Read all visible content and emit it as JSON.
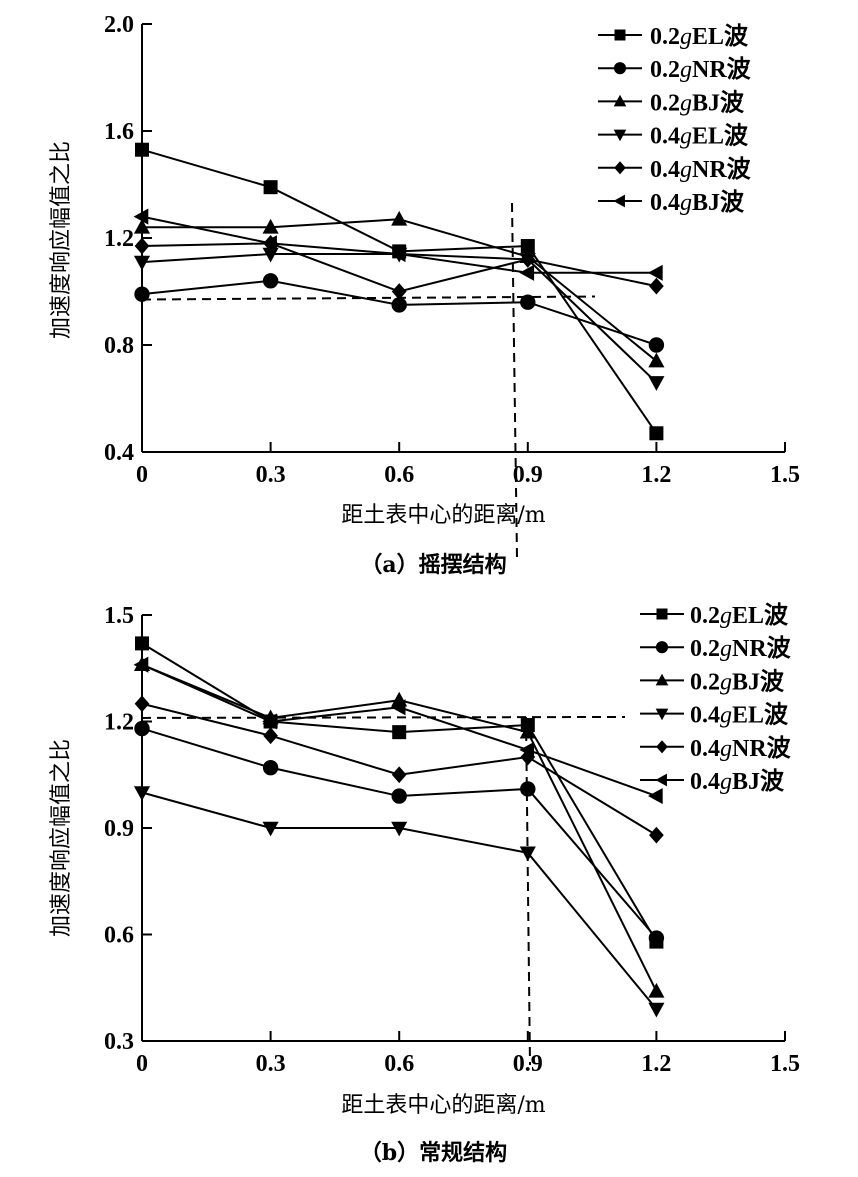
{
  "chart_data": [
    {
      "type": "line",
      "panel": "a",
      "caption": "（a）摇摆结构",
      "xlabel": "距土表中心的距离/m",
      "ylabel": "加速度响应幅值之比",
      "xlim": [
        0,
        1.5
      ],
      "ylim": [
        0.4,
        2.0
      ],
      "xticks": [
        "0",
        "0.3",
        "0.6",
        "0.9",
        "1.2",
        "1.5"
      ],
      "yticks": [
        "0.4",
        "0.8",
        "1.2",
        "1.6",
        "2.0"
      ],
      "x": [
        0,
        0.3,
        0.6,
        0.9,
        1.2
      ],
      "legend_position": "top-right",
      "reference_lines": {
        "horizontal_y": 0.97,
        "vertical_x": 0.87
      },
      "series": [
        {
          "name": "0.2gEL波",
          "prefix": "0.2",
          "g": "g",
          "suffix": "EL波",
          "marker": "square",
          "values": [
            1.53,
            1.39,
            1.15,
            1.17,
            0.47
          ]
        },
        {
          "name": "0.2gNR波",
          "prefix": "0.2",
          "g": "g",
          "suffix": "NR波",
          "marker": "circle",
          "values": [
            0.99,
            1.04,
            0.95,
            0.96,
            0.8
          ]
        },
        {
          "name": "0.2gBJ波",
          "prefix": "0.2",
          "g": "g",
          "suffix": "BJ波",
          "marker": "triangle-up",
          "values": [
            1.24,
            1.24,
            1.27,
            1.13,
            0.74
          ]
        },
        {
          "name": "0.4gEL波",
          "prefix": "0.4",
          "g": "g",
          "suffix": "EL波",
          "marker": "triangle-down",
          "values": [
            1.11,
            1.14,
            1.14,
            1.12,
            0.66
          ]
        },
        {
          "name": "0.4gNR波",
          "prefix": "0.4",
          "g": "g",
          "suffix": "NR波",
          "marker": "diamond",
          "values": [
            1.17,
            1.18,
            1.0,
            1.12,
            1.02
          ]
        },
        {
          "name": "0.4gBJ波",
          "prefix": "0.4",
          "g": "g",
          "suffix": "BJ波",
          "marker": "triangle-left",
          "values": [
            1.28,
            1.18,
            1.14,
            1.07,
            1.07
          ]
        }
      ]
    },
    {
      "type": "line",
      "panel": "b",
      "caption": "（b）常规结构",
      "xlabel": "距土表中心的距离/m",
      "ylabel": "加速度响应幅值之比",
      "xlim": [
        0,
        1.5
      ],
      "ylim": [
        0.3,
        1.5
      ],
      "xticks": [
        "0",
        "0.3",
        "0.6",
        "0.9",
        "1.2",
        "1.5"
      ],
      "yticks": [
        "0.3",
        "0.6",
        "0.9",
        "1.2",
        "1.5"
      ],
      "x": [
        0,
        0.3,
        0.6,
        0.9,
        1.2
      ],
      "legend_position": "top-right",
      "reference_lines": {
        "horizontal_y": 1.21,
        "vertical_x": 0.9
      },
      "series": [
        {
          "name": "0.2gEL波",
          "prefix": "0.2",
          "g": "g",
          "suffix": "EL波",
          "marker": "square",
          "values": [
            1.42,
            1.2,
            1.17,
            1.19,
            0.58
          ]
        },
        {
          "name": "0.2gNR波",
          "prefix": "0.2",
          "g": "g",
          "suffix": "NR波",
          "marker": "circle",
          "values": [
            1.18,
            1.07,
            0.99,
            1.01,
            0.59
          ]
        },
        {
          "name": "0.2gBJ波",
          "prefix": "0.2",
          "g": "g",
          "suffix": "BJ波",
          "marker": "triangle-up",
          "values": [
            1.36,
            1.21,
            1.26,
            1.17,
            0.44
          ]
        },
        {
          "name": "0.4gEL波",
          "prefix": "0.4",
          "g": "g",
          "suffix": "EL波",
          "marker": "triangle-down",
          "values": [
            1.0,
            0.9,
            0.9,
            0.83,
            0.39
          ]
        },
        {
          "name": "0.4gNR波",
          "prefix": "0.4",
          "g": "g",
          "suffix": "NR波",
          "marker": "diamond",
          "values": [
            1.25,
            1.16,
            1.05,
            1.1,
            0.88
          ]
        },
        {
          "name": "0.4gBJ波",
          "prefix": "0.4",
          "g": "g",
          "suffix": "BJ波",
          "marker": "triangle-left",
          "values": [
            1.36,
            1.2,
            1.24,
            1.12,
            0.99
          ]
        }
      ]
    }
  ],
  "colors": {
    "ink": "#000000",
    "background": "#ffffff"
  }
}
